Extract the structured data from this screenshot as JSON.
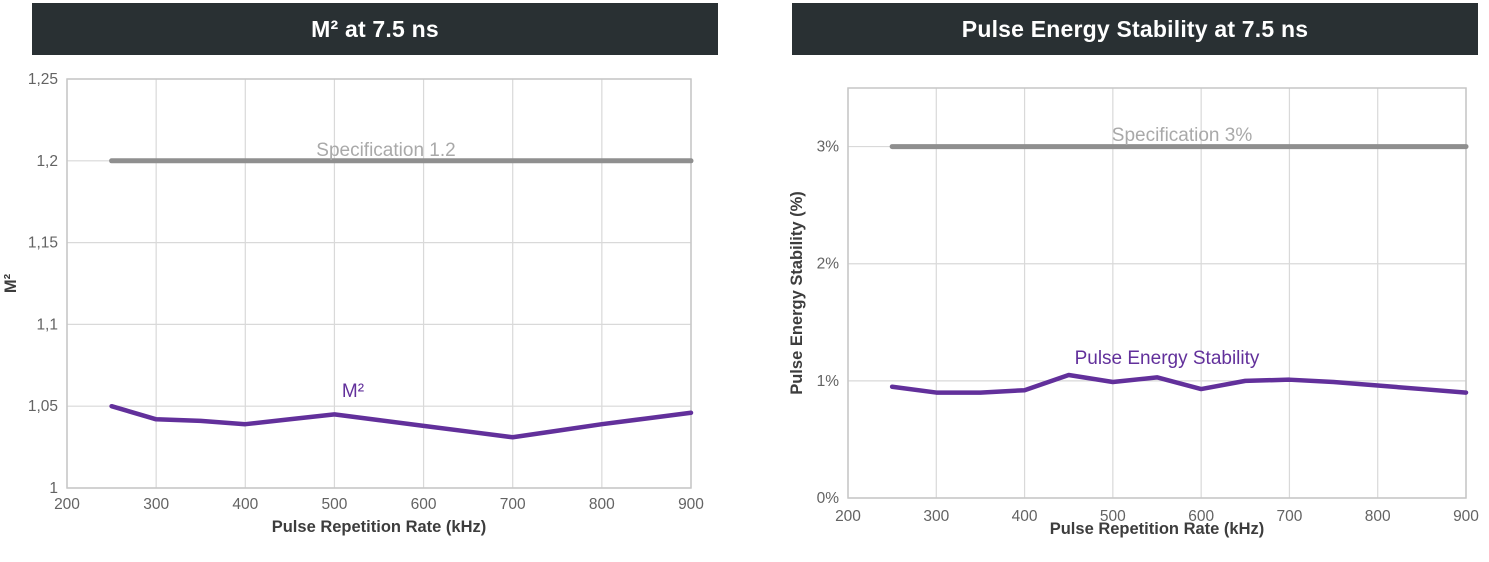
{
  "colors": {
    "banner_background": "#293033",
    "banner_text": "#ffffff",
    "grid": "#d9d9d9",
    "frame": "#c6c6c6",
    "spec_line": "#8f8f8f",
    "spec_label": "#a9a9a9",
    "accent_purple": "#62309b",
    "tick_text": "#636363",
    "axis_title_text": "#3d3d3d"
  },
  "chart_data": [
    {
      "type": "line",
      "title": "M² at 7.5 ns",
      "xlabel": "Pulse Repetition Rate (kHz)",
      "ylabel": "M²",
      "xlim": [
        200,
        900
      ],
      "ylim": [
        1,
        1.25
      ],
      "grid": true,
      "x_ticks": {
        "values": [
          200,
          300,
          400,
          500,
          600,
          700,
          800,
          900
        ],
        "labels": [
          "200",
          "300",
          "400",
          "500",
          "600",
          "700",
          "800",
          "900"
        ]
      },
      "y_ticks": {
        "values": [
          1,
          1.05,
          1.1,
          1.15,
          1.2,
          1.25
        ],
        "labels": [
          "1",
          "1,05",
          "1,1",
          "1,15",
          "1,2",
          "1,25"
        ]
      },
      "series": [
        {
          "name": "Specification 1.2",
          "role": "spec",
          "color": "#8f8f8f",
          "x": [
            250,
            900
          ],
          "y": [
            1.2,
            1.2
          ]
        },
        {
          "name": "M²",
          "role": "data",
          "color": "#62309b",
          "x": [
            250,
            300,
            350,
            400,
            450,
            500,
            550,
            600,
            650,
            700,
            750,
            800,
            850,
            900
          ],
          "y": [
            1.05,
            1.042,
            1.041,
            1.039,
            1.042,
            1.045,
            1.0415,
            1.038,
            1.0345,
            1.031,
            1.035,
            1.039,
            1.0425,
            1.046
          ]
        }
      ]
    },
    {
      "type": "line",
      "title": "Pulse Energy Stability at 7.5 ns",
      "xlabel": "Pulse Repetition Rate (kHz)",
      "ylabel": "Pulse Energy Stability (%)",
      "xlim": [
        200,
        900
      ],
      "ylim": [
        0,
        3.5
      ],
      "grid": true,
      "x_ticks": {
        "values": [
          200,
          300,
          400,
          500,
          600,
          700,
          800,
          900
        ],
        "labels": [
          "200",
          "300",
          "400",
          "500",
          "600",
          "700",
          "800",
          "900"
        ]
      },
      "y_ticks": {
        "values": [
          0,
          1,
          2,
          3
        ],
        "labels": [
          "0%",
          "1%",
          "2%",
          "3%"
        ]
      },
      "series": [
        {
          "name": "Specification 3%",
          "role": "spec",
          "color": "#8f8f8f",
          "x": [
            250,
            900
          ],
          "y": [
            3,
            3
          ]
        },
        {
          "name": "Pulse Energy Stability",
          "role": "data",
          "color": "#62309b",
          "x": [
            250,
            300,
            350,
            400,
            450,
            500,
            550,
            600,
            650,
            700,
            750,
            800,
            850,
            900
          ],
          "y": [
            0.95,
            0.9,
            0.9,
            0.92,
            1.05,
            0.99,
            1.03,
            0.93,
            1.0,
            1.01,
            0.99,
            0.96,
            0.93,
            0.9
          ]
        }
      ]
    }
  ]
}
